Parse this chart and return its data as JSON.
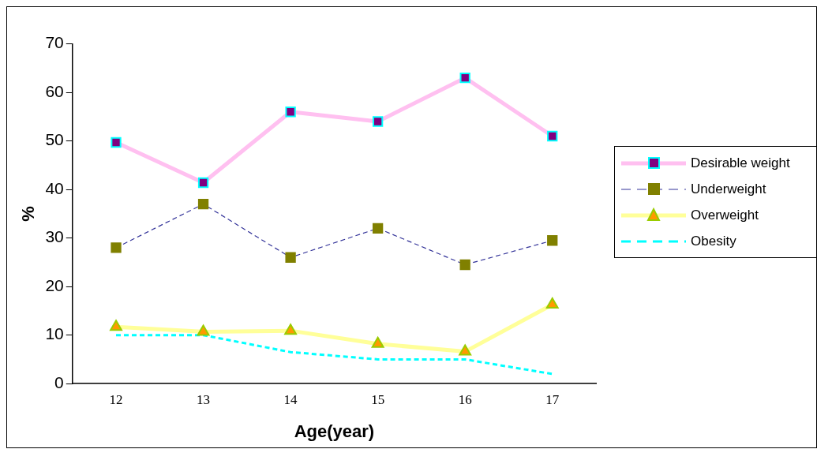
{
  "chart_data": {
    "type": "line",
    "xlabel": "Age(year)",
    "ylabel": "%",
    "categories": [
      "12",
      "13",
      "14",
      "15",
      "16",
      "17"
    ],
    "ylim": [
      0,
      70
    ],
    "yticks": [
      0,
      10,
      20,
      30,
      40,
      50,
      60,
      70
    ],
    "grid": false,
    "legend": "right",
    "series": [
      {
        "name": "Desirable weight",
        "color": "#ffc0f0",
        "marker": "square",
        "line_style": "solid",
        "values": [
          49.7,
          41.4,
          56,
          54,
          63,
          51
        ]
      },
      {
        "name": "Underweight",
        "color": "#333399",
        "marker": "square",
        "line_style": "dashed",
        "values": [
          28,
          37,
          26,
          32,
          24.5,
          29.5
        ]
      },
      {
        "name": "Overweight",
        "color": "#ffff99",
        "marker": "triangle",
        "line_style": "solid",
        "values": [
          11.7,
          10.7,
          10.9,
          8.2,
          6.6,
          16.3
        ]
      },
      {
        "name": "Obesity",
        "color": "#00ffff",
        "marker": "none",
        "line_style": "dashed",
        "values": [
          10,
          10,
          6.5,
          5,
          5,
          2
        ]
      }
    ]
  }
}
